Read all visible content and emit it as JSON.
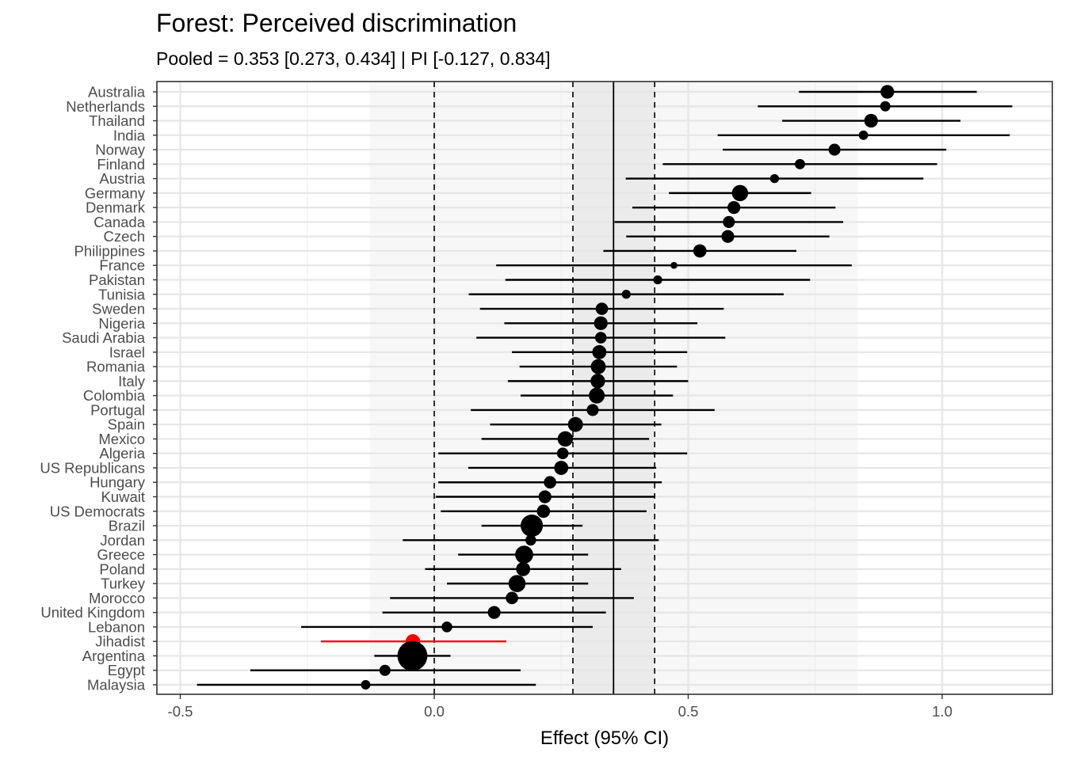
{
  "chart_data": {
    "type": "forest",
    "title": "Forest: Perceived discrimination",
    "subtitle": "Pooled = 0.353 [0.273, 0.434] | PI [-0.127, 0.834]",
    "xlabel": "Effect (95% CI)",
    "xlim": [
      -0.55,
      1.2
    ],
    "x_ticks": [
      -0.5,
      0.0,
      0.5,
      1.0
    ],
    "x_tick_labels": [
      "-0.5",
      "0.0",
      "0.5",
      "1.0"
    ],
    "pooled": {
      "estimate": 0.353,
      "ci_low": 0.273,
      "ci_high": 0.434
    },
    "prediction_interval": [
      -0.127,
      0.834
    ],
    "reference_line": 0.0,
    "grid": true,
    "colors": {
      "default": "#000000",
      "highlight": "#ff0000",
      "pi_band": "#f7f7f7",
      "ci_band": "#ebebeb"
    },
    "studies": [
      {
        "label": "Australia",
        "estimate": 0.892,
        "ci_low": 0.718,
        "ci_high": 1.068,
        "weight": 3.2
      },
      {
        "label": "Netherlands",
        "estimate": 0.888,
        "ci_low": 0.637,
        "ci_high": 1.138,
        "weight": 2.4
      },
      {
        "label": "Thailand",
        "estimate": 0.86,
        "ci_low": 0.685,
        "ci_high": 1.036,
        "weight": 3.2
      },
      {
        "label": "India",
        "estimate": 0.845,
        "ci_low": 0.558,
        "ci_high": 1.133,
        "weight": 2.2
      },
      {
        "label": "Norway",
        "estimate": 0.788,
        "ci_low": 0.568,
        "ci_high": 1.008,
        "weight": 2.8
      },
      {
        "label": "Finland",
        "estimate": 0.72,
        "ci_low": 0.45,
        "ci_high": 0.99,
        "weight": 2.4
      },
      {
        "label": "Austria",
        "estimate": 0.67,
        "ci_low": 0.377,
        "ci_high": 0.963,
        "weight": 2.1
      },
      {
        "label": "Germany",
        "estimate": 0.602,
        "ci_low": 0.462,
        "ci_high": 0.742,
        "weight": 3.8
      },
      {
        "label": "Denmark",
        "estimate": 0.59,
        "ci_low": 0.39,
        "ci_high": 0.79,
        "weight": 3.0
      },
      {
        "label": "Canada",
        "estimate": 0.58,
        "ci_low": 0.355,
        "ci_high": 0.805,
        "weight": 2.8
      },
      {
        "label": "Czech",
        "estimate": 0.578,
        "ci_low": 0.378,
        "ci_high": 0.778,
        "weight": 3.0
      },
      {
        "label": "Philippines",
        "estimate": 0.523,
        "ci_low": 0.333,
        "ci_high": 0.713,
        "weight": 3.1
      },
      {
        "label": "France",
        "estimate": 0.472,
        "ci_low": 0.122,
        "ci_high": 0.822,
        "weight": 1.6
      },
      {
        "label": "Pakistan",
        "estimate": 0.44,
        "ci_low": 0.14,
        "ci_high": 0.74,
        "weight": 2.1
      },
      {
        "label": "Tunisia",
        "estimate": 0.378,
        "ci_low": 0.068,
        "ci_high": 0.688,
        "weight": 2.1
      },
      {
        "label": "Sweden",
        "estimate": 0.33,
        "ci_low": 0.09,
        "ci_high": 0.57,
        "weight": 2.9
      },
      {
        "label": "Nigeria",
        "estimate": 0.328,
        "ci_low": 0.138,
        "ci_high": 0.518,
        "weight": 3.2
      },
      {
        "label": "Saudi Arabia",
        "estimate": 0.328,
        "ci_low": 0.083,
        "ci_high": 0.573,
        "weight": 2.7
      },
      {
        "label": "Israel",
        "estimate": 0.325,
        "ci_low": 0.153,
        "ci_high": 0.498,
        "weight": 3.3
      },
      {
        "label": "Romania",
        "estimate": 0.323,
        "ci_low": 0.168,
        "ci_high": 0.478,
        "weight": 3.5
      },
      {
        "label": "Italy",
        "estimate": 0.322,
        "ci_low": 0.145,
        "ci_high": 0.5,
        "weight": 3.4
      },
      {
        "label": "Colombia",
        "estimate": 0.32,
        "ci_low": 0.17,
        "ci_high": 0.47,
        "weight": 3.7
      },
      {
        "label": "Portugal",
        "estimate": 0.312,
        "ci_low": 0.072,
        "ci_high": 0.552,
        "weight": 2.8
      },
      {
        "label": "Spain",
        "estimate": 0.278,
        "ci_low": 0.11,
        "ci_high": 0.447,
        "weight": 3.5
      },
      {
        "label": "Mexico",
        "estimate": 0.258,
        "ci_low": 0.093,
        "ci_high": 0.423,
        "weight": 3.6
      },
      {
        "label": "Algeria",
        "estimate": 0.253,
        "ci_low": 0.008,
        "ci_high": 0.498,
        "weight": 2.7
      },
      {
        "label": "US Republicans",
        "estimate": 0.25,
        "ci_low": 0.067,
        "ci_high": 0.437,
        "weight": 3.3
      },
      {
        "label": "Hungary",
        "estimate": 0.228,
        "ci_low": 0.008,
        "ci_high": 0.448,
        "weight": 2.9
      },
      {
        "label": "Kuwait",
        "estimate": 0.218,
        "ci_low": 0.003,
        "ci_high": 0.433,
        "weight": 3.0
      },
      {
        "label": "US Democrats",
        "estimate": 0.215,
        "ci_low": 0.013,
        "ci_high": 0.418,
        "weight": 3.1
      },
      {
        "label": "Brazil",
        "estimate": 0.192,
        "ci_low": 0.093,
        "ci_high": 0.292,
        "weight": 5.2
      },
      {
        "label": "Jordan",
        "estimate": 0.19,
        "ci_low": -0.062,
        "ci_high": 0.442,
        "weight": 2.5
      },
      {
        "label": "Greece",
        "estimate": 0.177,
        "ci_low": 0.047,
        "ci_high": 0.303,
        "weight": 4.2
      },
      {
        "label": "Poland",
        "estimate": 0.175,
        "ci_low": -0.018,
        "ci_high": 0.368,
        "weight": 3.3
      },
      {
        "label": "Turkey",
        "estimate": 0.163,
        "ci_low": 0.025,
        "ci_high": 0.303,
        "weight": 4.0
      },
      {
        "label": "Morocco",
        "estimate": 0.153,
        "ci_low": -0.087,
        "ci_high": 0.393,
        "weight": 2.9
      },
      {
        "label": "United Kingdom",
        "estimate": 0.118,
        "ci_low": -0.102,
        "ci_high": 0.338,
        "weight": 3.0
      },
      {
        "label": "Lebanon",
        "estimate": 0.025,
        "ci_low": -0.262,
        "ci_high": 0.312,
        "weight": 2.5
      },
      {
        "label": "Jihadist",
        "estimate": -0.042,
        "ci_low": -0.223,
        "ci_high": 0.142,
        "weight": 3.4,
        "highlight": true
      },
      {
        "label": "Argentina",
        "estimate": -0.043,
        "ci_low": -0.118,
        "ci_high": 0.032,
        "weight": 7.0
      },
      {
        "label": "Egypt",
        "estimate": -0.097,
        "ci_low": -0.362,
        "ci_high": 0.17,
        "weight": 2.6
      },
      {
        "label": "Malaysia",
        "estimate": -0.135,
        "ci_low": -0.467,
        "ci_high": 0.2,
        "weight": 2.2
      }
    ]
  }
}
